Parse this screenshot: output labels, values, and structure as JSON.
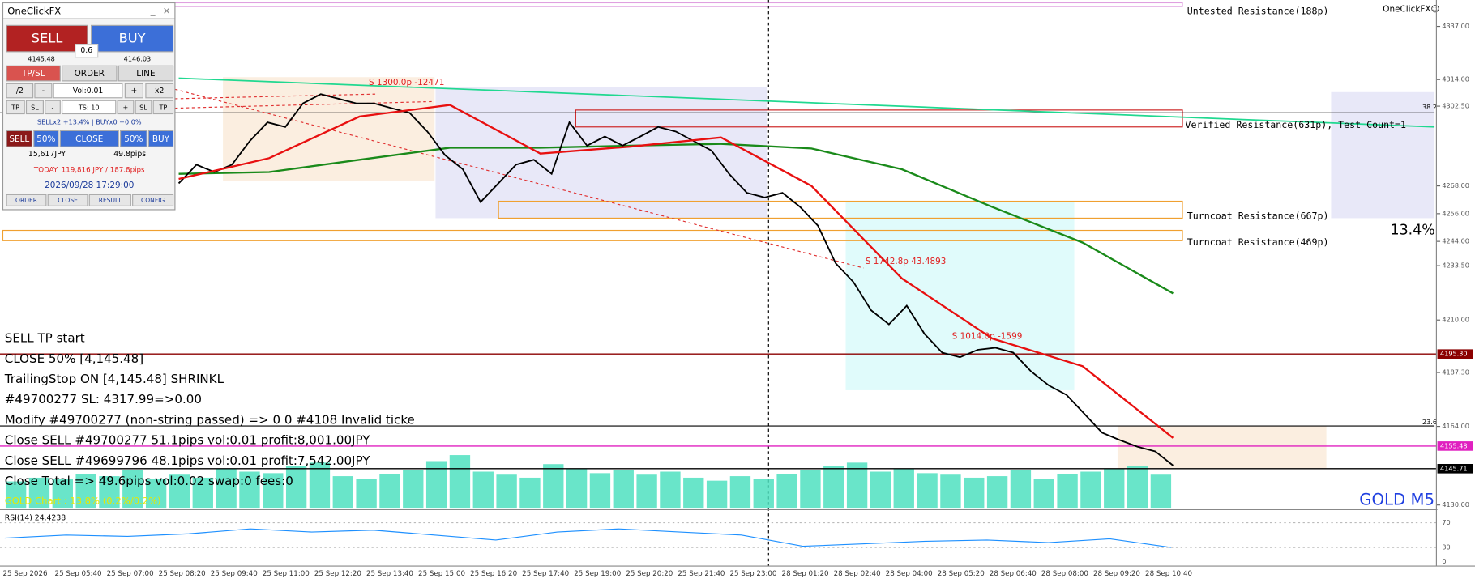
{
  "panel": {
    "title": "OneClickFX",
    "sell": "SELL",
    "buy": "BUY",
    "spread": "0.6",
    "bid": "4145.48",
    "ask": "4146.03",
    "tabs": [
      "TP/SL",
      "ORDER",
      "LINE"
    ],
    "row1": [
      "/2",
      "-",
      "Vol:0.01",
      "+",
      "x2"
    ],
    "row2": [
      "TP",
      "SL",
      "-",
      "TS: 10",
      "+",
      "SL",
      "TP"
    ],
    "status": "SELLx2 +13.4% | BUYx0 +0.0%",
    "row3": [
      "SELL",
      "50%",
      "CLOSE",
      "50%",
      "BUY"
    ],
    "profit": "15,617JPY",
    "pips": "49.8pips",
    "today": "TODAY: 119,816 JPY / 187.8pips",
    "datetime": "2026/09/28  17:29:00",
    "buttons": [
      "ORDER",
      "CLOSE",
      "RESULT",
      "CONFIG"
    ]
  },
  "chart_data": {
    "type": "line",
    "symbol": "GOLD M5",
    "brand": "OneClickFX☺",
    "ylim": [
      4128.8,
      4348.4
    ],
    "yticks": [
      {
        "value": 4337,
        "label": "4337.00"
      },
      {
        "value": 4314,
        "label": "4314.00"
      },
      {
        "value": 4302.5,
        "label": "4302.50"
      },
      {
        "value": 4268,
        "label": "4268.00"
      },
      {
        "value": 4256,
        "label": "4256.00"
      },
      {
        "value": 4244,
        "label": "4244.00"
      },
      {
        "value": 4233.5,
        "label": "4233.50"
      },
      {
        "value": 4210,
        "label": "4210.00"
      },
      {
        "value": 4187.3,
        "label": "4187.30"
      },
      {
        "value": 4164,
        "label": "4164.00"
      },
      {
        "value": 4130,
        "label": "4130.00"
      }
    ],
    "price_markers": [
      {
        "value": 4195.3,
        "label": "4195.30",
        "color": "#8b0000"
      },
      {
        "value": 4155.48,
        "label": "4155.48",
        "color": "#e020c0"
      },
      {
        "value": 4145.71,
        "label": "4145.71",
        "color": "#000000"
      }
    ],
    "close": {
      "color": "#000000",
      "values": [
        4269.1,
        4277.2,
        4274.0,
        4277.2,
        4287.4,
        4295.5,
        4293.5,
        4303.7,
        4307.7,
        4305.7,
        4303.7,
        4303.7,
        4301.6,
        4299.6,
        4291.5,
        4281.3,
        4275.2,
        4261.0,
        4269.1,
        4277.2,
        4279.3,
        4273.2,
        4295.5,
        4285.4,
        4289.4,
        4285.4,
        4289.4,
        4293.5,
        4291.5,
        4287.4,
        4283.3,
        4273.2,
        4265.0,
        4263.0,
        4265.0,
        4258.9,
        4250.8,
        4234.5,
        4226.4,
        4214.2,
        4208.1,
        4216.2,
        4204.0,
        4195.9,
        4193.9,
        4197.1,
        4198.0,
        4195.9,
        4187.8,
        4181.7,
        4177.6,
        4169.5,
        4161.3,
        4158.1,
        4155.2,
        4153.2,
        4147.1
      ]
    },
    "ma_fast": {
      "color": "#e81010",
      "values": [
        4271,
        4280,
        4298,
        4303,
        4282,
        4285,
        4289,
        4268,
        4228,
        4202,
        4190,
        4159
      ]
    },
    "ma_slow": {
      "color": "#1a8a1a",
      "values": [
        4273.2,
        4274.0,
        4279.3,
        4284.5,
        4284.5,
        4285.4,
        4286.2,
        4284.2,
        4275.2,
        4258.9,
        4243.5,
        4221.5
      ]
    },
    "trendline": {
      "color": "#20d890",
      "values": [
        4314.6,
        4293.5
      ]
    },
    "volume": {
      "color": "#4fe0c0",
      "ylim": [
        0,
        100
      ],
      "values": [
        35,
        40,
        38,
        45,
        42,
        50,
        38,
        44,
        40,
        52,
        48,
        46,
        55,
        60,
        42,
        38,
        45,
        50,
        62,
        70,
        48,
        44,
        40,
        58,
        52,
        46,
        50,
        44,
        48,
        40,
        36,
        42,
        38,
        45,
        50,
        55,
        60,
        48,
        52,
        46,
        44,
        40,
        42,
        50,
        38,
        45,
        48,
        52,
        55,
        44
      ]
    },
    "rsi": {
      "title": "RSI(14) 24.4238",
      "color": "#1e90ff",
      "ylim": [
        0,
        88
      ],
      "yticks": [
        70,
        30,
        0
      ],
      "values": [
        45,
        50,
        48,
        52,
        60,
        55,
        58,
        50,
        42,
        55,
        60,
        55,
        50,
        32,
        36,
        40,
        42,
        38,
        44,
        30
      ]
    },
    "time_labels": [
      "25 Sep 2026",
      "25 Sep 05:40",
      "25 Sep 07:00",
      "25 Sep 08:20",
      "25 Sep 09:40",
      "25 Sep 11:00",
      "25 Sep 12:20",
      "25 Sep 13:40",
      "25 Sep 15:00",
      "25 Sep 16:20",
      "25 Sep 17:40",
      "25 Sep 19:00",
      "25 Sep 20:20",
      "25 Sep 21:40",
      "25 Sep 23:00",
      "28 Sep 01:20",
      "28 Sep 02:40",
      "28 Sep 04:00",
      "28 Sep 05:20",
      "28 Sep 06:40",
      "28 Sep 08:00",
      "28 Sep 09:20",
      "28 Sep 10:40"
    ],
    "zone_labels": [
      "Untested Resistance(188p)",
      "Verified Resistance(631p), Test Count=1",
      "Turncoat Resistance(667p)",
      "Turncoat Resistance(469p)"
    ],
    "fib_labels": [
      "38.2",
      "23.6"
    ],
    "percent_label": "13.4%",
    "trade_labels": [
      "S 1300.0p -12471",
      "S 1742.8p 43.4893",
      "S 1014.0p -1599"
    ]
  },
  "log": [
    "SELL TP start",
    "CLOSE 50% [4,145.48]",
    "TrailingStop ON [4,145.48] SHRINKL",
    "#49700277 SL: 4317.99=>0.00",
    "Modify #49700277 (non-string passed) => 0 0 #4108 Invalid ticke",
    "Close SELL #49700277 51.1pips vol:0.01 profit:8,001.00JPY",
    "Close SELL #49699796 48.1pips vol:0.01 profit:7,542.00JPY",
    "Close Total => 49.6pips vol:0.02 swap:0 fees:0"
  ],
  "overlay": "GOLD Chart : 13.8% (0.2%/0.2%)"
}
